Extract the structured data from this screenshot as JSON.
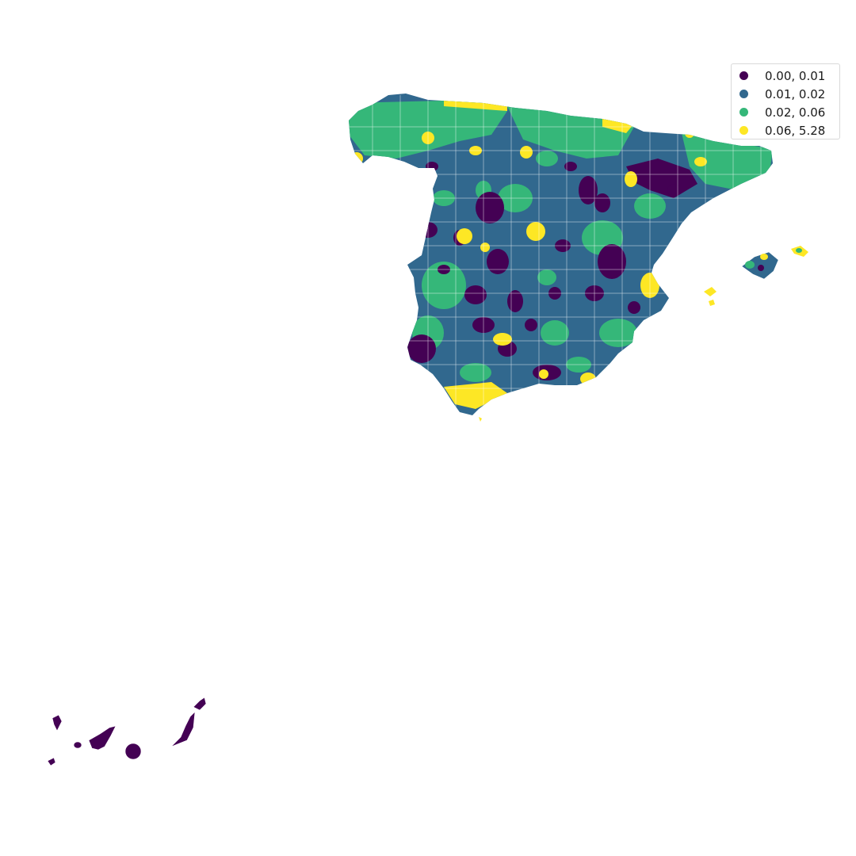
{
  "map": {
    "classes": [
      {
        "label": "0.00, 0.01",
        "color": "#440154"
      },
      {
        "label": "0.01, 0.02",
        "color": "#31688e"
      },
      {
        "label": "0.02, 0.06",
        "color": "#35b779"
      },
      {
        "label": "0.06, 5.28",
        "color": "#fde725"
      }
    ],
    "border_color": "#ffffff"
  }
}
